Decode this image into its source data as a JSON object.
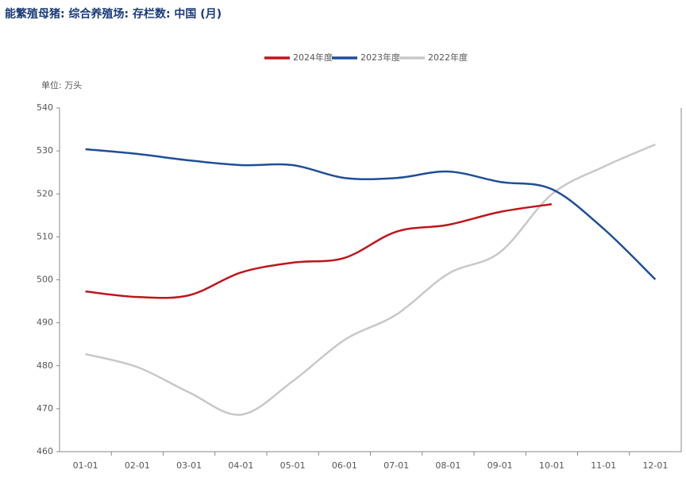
{
  "chart_data": {
    "type": "line",
    "title": "能繁殖母猪: 综合养殖场: 存栏数: 中国 (月)",
    "y_label": "单位: 万头",
    "categories": [
      "01-01",
      "02-01",
      "03-01",
      "04-01",
      "05-01",
      "06-01",
      "07-01",
      "08-01",
      "09-01",
      "10-01",
      "11-01",
      "12-01"
    ],
    "series": [
      {
        "name": "2024年度",
        "color": "#c0151c",
        "values": [
          497.3,
          496.0,
          496.4,
          501.7,
          504.0,
          505.1,
          511.2,
          512.8,
          515.8,
          517.6,
          null,
          null
        ]
      },
      {
        "name": "2023年度",
        "color": "#1f4e96",
        "values": [
          530.4,
          529.3,
          527.8,
          526.7,
          526.7,
          523.7,
          523.7,
          525.2,
          522.8,
          521.1,
          511.9,
          500.1
        ]
      },
      {
        "name": "2022年度",
        "color": "#c8c8c8",
        "values": [
          482.7,
          479.7,
          473.8,
          468.6,
          476.4,
          486.0,
          491.9,
          501.4,
          506.4,
          519.9,
          526.3,
          531.5
        ]
      }
    ],
    "ylim": [
      460,
      540
    ],
    "yticks": [
      460,
      470,
      480,
      490,
      500,
      510,
      520,
      530,
      540
    ],
    "legend": "top"
  }
}
